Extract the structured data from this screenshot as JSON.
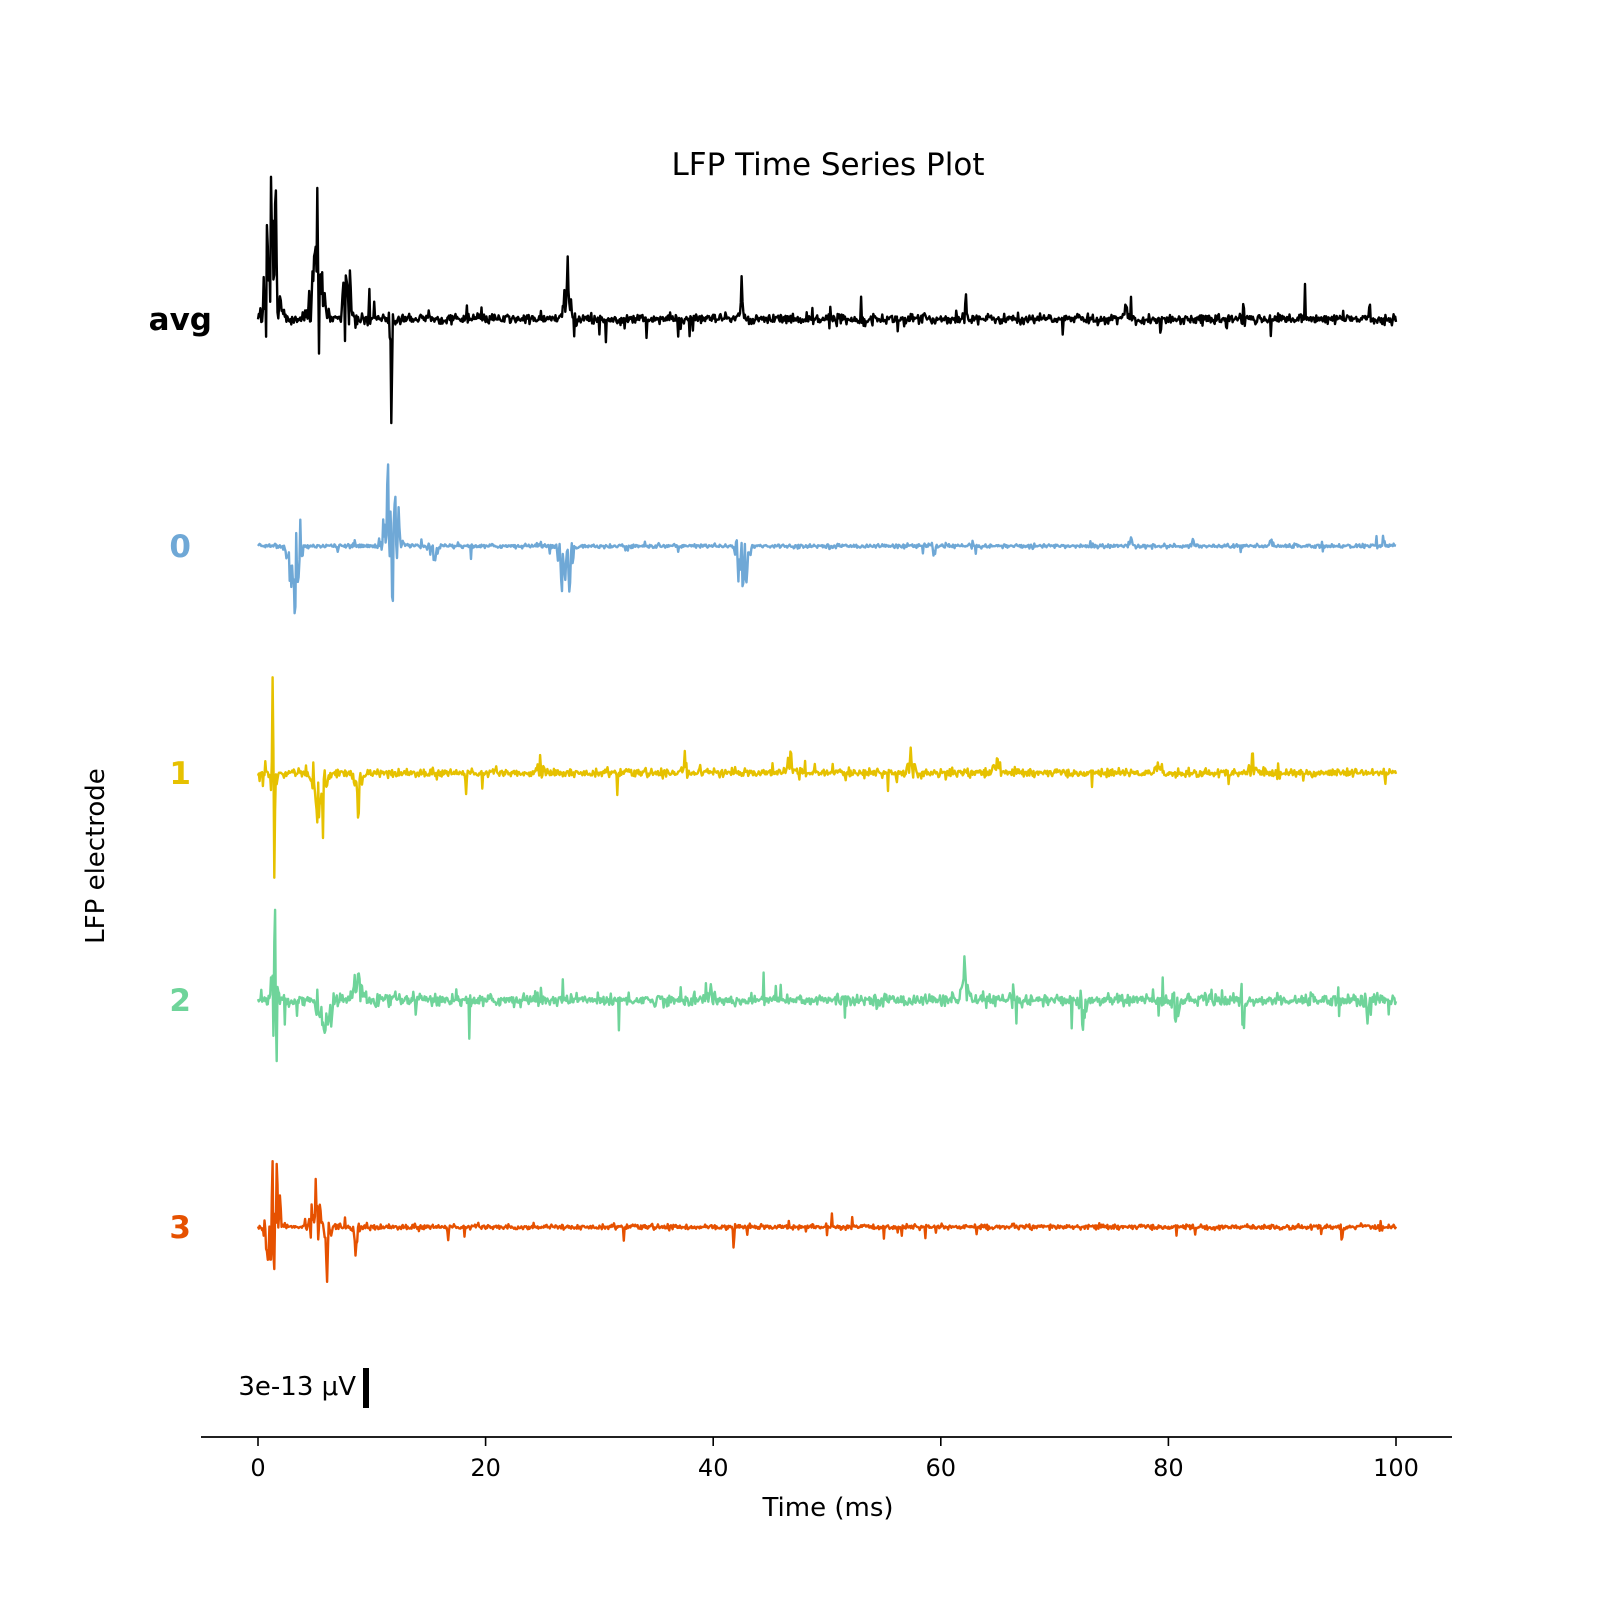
{
  "chart_data": {
    "type": "line",
    "title": "LFP Time Series Plot",
    "xlabel": "Time (ms)",
    "ylabel": "LFP electrode",
    "xlim": [
      -5,
      105
    ],
    "xticks": [
      0,
      20,
      40,
      60,
      80,
      100
    ],
    "grid": false,
    "scale_bar": {
      "label": "3e-13 μV",
      "value": 3e-13
    },
    "series": [
      {
        "name": "avg",
        "color": "#000000",
        "baseline": 0,
        "bursts": [
          [
            1.2,
            0.9,
            1.0
          ],
          [
            5.2,
            0.7,
            0.9
          ],
          [
            7.8,
            0.5,
            0.6
          ],
          [
            11.7,
            -0.75,
            0.25
          ],
          [
            27.2,
            0.3,
            0.5
          ],
          [
            42.5,
            0.2,
            0.3
          ],
          [
            62.2,
            0.15,
            0.3
          ],
          [
            76.3,
            0.12,
            0.3
          ],
          [
            86.6,
            0.12,
            0.3
          ],
          [
            97.7,
            0.1,
            0.3
          ]
        ],
        "noise": 0.05
      },
      {
        "name": "0",
        "color": "#6fa8d6",
        "baseline": -1,
        "bursts": [
          [
            3.2,
            -0.55,
            0.8
          ],
          [
            11.7,
            0.55,
            1.0
          ],
          [
            11.8,
            -0.8,
            0.2
          ],
          [
            15.5,
            -0.1,
            0.6
          ],
          [
            27.0,
            -0.45,
            0.8
          ],
          [
            42.6,
            -0.3,
            0.8
          ],
          [
            59.4,
            -0.05,
            0.3
          ],
          [
            76.7,
            0.05,
            0.3
          ],
          [
            82.2,
            0.05,
            0.3
          ],
          [
            89.0,
            0.05,
            0.3
          ],
          [
            98.9,
            0.06,
            0.3
          ]
        ],
        "noise": 0.02
      },
      {
        "name": "1",
        "color": "#e6c100",
        "baseline": -2,
        "bursts": [
          [
            1.3,
            0.95,
            0.15
          ],
          [
            1.4,
            -0.55,
            0.3
          ],
          [
            5.4,
            -0.4,
            0.9
          ],
          [
            8.8,
            -0.2,
            0.7
          ],
          [
            24.8,
            0.1,
            0.6
          ],
          [
            37.5,
            0.1,
            0.5
          ],
          [
            46.8,
            0.13,
            0.5
          ],
          [
            57.4,
            0.16,
            0.5
          ],
          [
            64.9,
            0.13,
            0.5
          ],
          [
            79.1,
            0.1,
            0.5
          ],
          [
            87.4,
            0.1,
            0.5
          ]
        ],
        "noise": 0.04
      },
      {
        "name": "2",
        "color": "#6fd49a",
        "baseline": -3,
        "bursts": [
          [
            1.5,
            0.7,
            0.4
          ],
          [
            1.6,
            -0.6,
            0.3
          ],
          [
            5.8,
            -0.35,
            0.9
          ],
          [
            8.8,
            0.22,
            0.7
          ],
          [
            39.8,
            0.12,
            0.5
          ],
          [
            62.1,
            0.18,
            0.5
          ],
          [
            72.5,
            -0.18,
            0.5
          ],
          [
            80.6,
            -0.18,
            0.5
          ],
          [
            86.6,
            -0.18,
            0.5
          ],
          [
            97.5,
            -0.15,
            0.5
          ]
        ],
        "noise": 0.06
      },
      {
        "name": "3",
        "color": "#e65100",
        "baseline": -4,
        "bursts": [
          [
            1.1,
            -0.45,
            0.7
          ],
          [
            1.6,
            0.38,
            0.6
          ],
          [
            5.1,
            0.27,
            0.7
          ],
          [
            6.1,
            -0.27,
            0.4
          ],
          [
            8.6,
            -0.16,
            0.4
          ],
          [
            41.8,
            -0.08,
            0.3
          ],
          [
            82.4,
            -0.06,
            0.3
          ],
          [
            95.3,
            -0.08,
            0.3
          ]
        ],
        "noise": 0.025
      }
    ]
  }
}
